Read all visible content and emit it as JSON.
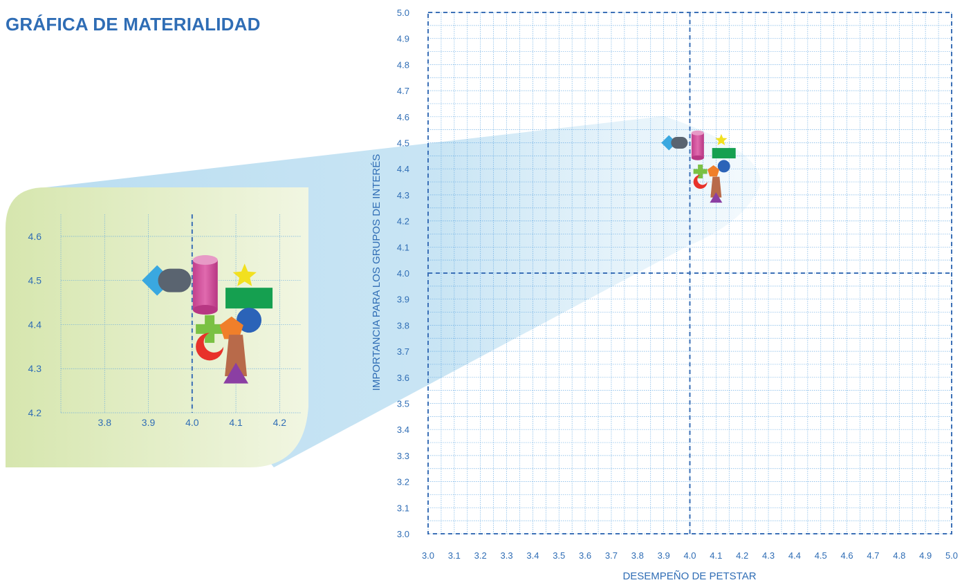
{
  "title": "GRÁFICA DE MATERIALIDAD",
  "colors": {
    "title": "#2f6db5",
    "axis_text": "#2f6db5",
    "grid": "#5aa3e0",
    "quadrant_line": "#3b6fb6",
    "inset_bg": "#e9f1cf",
    "zoom_beam": "#b9dcf0"
  },
  "chart_data": [
    {
      "type": "scatter",
      "title": "",
      "xlabel": "DESEMPEÑO DE PETSTAR",
      "ylabel": "IMPORTANCIA PARA LOS GRUPOS DE INTERÉS",
      "xlim": [
        3.0,
        5.0
      ],
      "ylim": [
        3.0,
        5.0
      ],
      "x_ticks": [
        "3.0",
        "3.1",
        "3.2",
        "3.3",
        "3.4",
        "3.5",
        "3.6",
        "3.7",
        "3.8",
        "3.9",
        "4.0",
        "4.1",
        "4.2",
        "4.3",
        "4.4",
        "4.5",
        "4.6",
        "4.7",
        "4.8",
        "4.9",
        "5.0"
      ],
      "y_ticks": [
        "3.0",
        "3.1",
        "3.2",
        "3.3",
        "3.4",
        "3.5",
        "3.6",
        "3.7",
        "3.8",
        "3.9",
        "4.0",
        "4.1",
        "4.2",
        "4.3",
        "4.4",
        "4.5",
        "4.6",
        "4.7",
        "4.8",
        "4.9",
        "5.0"
      ],
      "grid": true,
      "quadrant_lines": {
        "x": 4.0,
        "y": 4.0
      },
      "points": [
        {
          "shape": "diamond",
          "color": "#3aa8e0",
          "x": 3.92,
          "y": 4.5
        },
        {
          "shape": "capsule",
          "color": "#5a6470",
          "x": 3.96,
          "y": 4.5
        },
        {
          "shape": "cylinder",
          "color": "#d24f9b",
          "x": 4.03,
          "y": 4.49
        },
        {
          "shape": "star",
          "color": "#f2e01f",
          "x": 4.12,
          "y": 4.51
        },
        {
          "shape": "rectangle",
          "color": "#15a050",
          "x": 4.13,
          "y": 4.46
        },
        {
          "shape": "circle",
          "color": "#2b63b8",
          "x": 4.13,
          "y": 4.41
        },
        {
          "shape": "cross",
          "color": "#7ac143",
          "x": 4.04,
          "y": 4.39
        },
        {
          "shape": "crescent",
          "color": "#e8322a",
          "x": 4.04,
          "y": 4.35
        },
        {
          "shape": "pentagon",
          "color": "#f07f2a",
          "x": 4.09,
          "y": 4.39
        },
        {
          "shape": "trapezoid",
          "color": "#b86a4a",
          "x": 4.1,
          "y": 4.33
        },
        {
          "shape": "triangle",
          "color": "#8b3fa3",
          "x": 4.1,
          "y": 4.29
        }
      ]
    },
    {
      "type": "scatter",
      "title": "",
      "xlabel": "",
      "ylabel": "",
      "xlim": [
        3.7,
        4.25
      ],
      "ylim": [
        4.2,
        4.65
      ],
      "x_ticks": [
        "3.8",
        "3.9",
        "4.0",
        "4.1",
        "4.2"
      ],
      "y_ticks": [
        "4.2",
        "4.3",
        "4.4",
        "4.5",
        "4.6"
      ],
      "grid": true,
      "quadrant_lines": {
        "x": 4.0
      },
      "points": [
        {
          "shape": "diamond",
          "color": "#3aa8e0",
          "x": 3.92,
          "y": 4.5
        },
        {
          "shape": "capsule",
          "color": "#5a6470",
          "x": 3.96,
          "y": 4.5
        },
        {
          "shape": "cylinder",
          "color": "#d24f9b",
          "x": 4.03,
          "y": 4.49
        },
        {
          "shape": "star",
          "color": "#f2e01f",
          "x": 4.12,
          "y": 4.51
        },
        {
          "shape": "rectangle",
          "color": "#15a050",
          "x": 4.13,
          "y": 4.46
        },
        {
          "shape": "circle",
          "color": "#2b63b8",
          "x": 4.13,
          "y": 4.41
        },
        {
          "shape": "cross",
          "color": "#7ac143",
          "x": 4.04,
          "y": 4.39
        },
        {
          "shape": "crescent",
          "color": "#e8322a",
          "x": 4.04,
          "y": 4.35
        },
        {
          "shape": "pentagon",
          "color": "#f07f2a",
          "x": 4.09,
          "y": 4.39
        },
        {
          "shape": "trapezoid",
          "color": "#b86a4a",
          "x": 4.1,
          "y": 4.33
        },
        {
          "shape": "triangle",
          "color": "#8b3fa3",
          "x": 4.1,
          "y": 4.29
        }
      ]
    }
  ]
}
